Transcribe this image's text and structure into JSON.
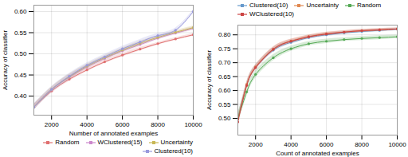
{
  "chart_data": [
    {
      "type": "line",
      "xlabel": "Number of annotated examples",
      "ylabel": "Accuracy of classifier",
      "x": [
        1000,
        2000,
        3000,
        4000,
        5000,
        6000,
        7000,
        8000,
        9000,
        10000
      ],
      "xlim": [
        1000,
        10000
      ],
      "ylim": [
        0.355,
        0.615
      ],
      "xticks": [
        2000,
        4000,
        6000,
        8000,
        10000
      ],
      "yticks": [
        {
          "value": 0.4,
          "label": "0.40"
        },
        0.45,
        {
          "value": 0.5,
          "label": "0.50"
        },
        0.55,
        {
          "value": 0.6,
          "label": "0.60"
        }
      ],
      "grid": true,
      "legend": "lower right",
      "series": [
        {
          "name": "Random",
          "color": "#e07070",
          "values": [
            0.374,
            0.412,
            0.44,
            0.462,
            0.481,
            0.497,
            0.511,
            0.524,
            0.535,
            0.545
          ],
          "std": [
            0.006,
            0.005,
            0.005,
            0.004,
            0.004,
            0.004,
            0.004,
            0.003,
            0.003,
            0.003
          ]
        },
        {
          "name": "WClustered(15)",
          "color": "#cc88cc",
          "values": [
            0.374,
            0.415,
            0.445,
            0.469,
            0.489,
            0.507,
            0.522,
            0.537,
            0.549,
            0.56
          ],
          "std": [
            0.007,
            0.006,
            0.006,
            0.005,
            0.005,
            0.005,
            0.005,
            0.004,
            0.004,
            0.004
          ]
        },
        {
          "name": "Uncertainty",
          "color": "#c8b855",
          "values": [
            0.374,
            0.416,
            0.446,
            0.471,
            0.491,
            0.509,
            0.525,
            0.539,
            0.551,
            0.562
          ],
          "std": [
            0.007,
            0.006,
            0.006,
            0.005,
            0.005,
            0.005,
            0.005,
            0.004,
            0.004,
            0.004
          ]
        },
        {
          "name": "Clustered(10)",
          "color": "#9999dd",
          "values": [
            0.374,
            0.416,
            0.447,
            0.473,
            0.493,
            0.512,
            0.528,
            0.543,
            0.556,
            0.6
          ],
          "std": [
            0.008,
            0.007,
            0.007,
            0.006,
            0.006,
            0.006,
            0.006,
            0.005,
            0.005,
            0.004
          ]
        }
      ]
    },
    {
      "type": "line",
      "xlabel": "Count of annotated examples",
      "ylabel": "Accuracy of classifier",
      "x": [
        1000,
        1500,
        2000,
        3000,
        4000,
        5000,
        6000,
        7000,
        8000,
        9000,
        10000
      ],
      "xlim": [
        1000,
        10000
      ],
      "ylim": [
        0.44,
        0.835
      ],
      "xticks": [
        2000,
        4000,
        6000,
        8000,
        10000
      ],
      "yticks": [
        {
          "value": 0.5,
          "label": "0.50"
        },
        0.55,
        {
          "value": 0.6,
          "label": "0.60"
        },
        0.65,
        {
          "value": 0.7,
          "label": "0.70"
        },
        0.75,
        {
          "value": 0.8,
          "label": "0.80"
        }
      ],
      "grid": true,
      "legend": "upper left",
      "series": [
        {
          "name": "Clustered(10)",
          "color": "#6699cc",
          "values": [
            0.499,
            0.62,
            0.683,
            0.745,
            0.773,
            0.79,
            0.8,
            0.807,
            0.812,
            0.816,
            0.82
          ],
          "std": [
            0.012,
            0.01,
            0.009,
            0.008,
            0.007,
            0.006,
            0.006,
            0.005,
            0.005,
            0.005,
            0.004
          ]
        },
        {
          "name": "Uncertainty",
          "color": "#e08850",
          "values": [
            0.497,
            0.622,
            0.685,
            0.749,
            0.778,
            0.794,
            0.804,
            0.81,
            0.815,
            0.818,
            0.821
          ],
          "std": [
            0.012,
            0.01,
            0.009,
            0.008,
            0.007,
            0.006,
            0.006,
            0.005,
            0.005,
            0.005,
            0.004
          ]
        },
        {
          "name": "Random",
          "color": "#55aa55",
          "values": [
            0.5,
            0.595,
            0.658,
            0.718,
            0.75,
            0.768,
            0.777,
            0.783,
            0.787,
            0.79,
            0.793
          ],
          "std": [
            0.02,
            0.016,
            0.013,
            0.011,
            0.009,
            0.008,
            0.008,
            0.007,
            0.007,
            0.007,
            0.006
          ]
        },
        {
          "name": "WClustered(10)",
          "color": "#cc4444",
          "values": [
            0.487,
            0.618,
            0.682,
            0.748,
            0.777,
            0.793,
            0.803,
            0.81,
            0.815,
            0.818,
            0.821
          ],
          "std": [
            0.012,
            0.01,
            0.009,
            0.008,
            0.007,
            0.006,
            0.006,
            0.005,
            0.005,
            0.005,
            0.004
          ]
        }
      ]
    }
  ]
}
